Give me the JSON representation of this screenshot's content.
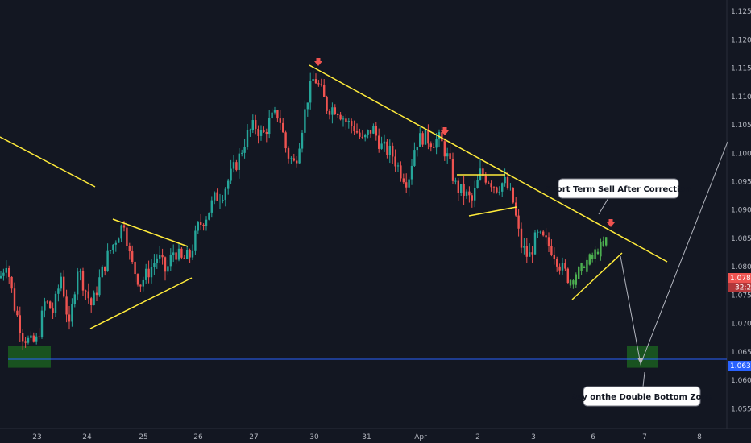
{
  "chart_data": {
    "type": "candlestick",
    "y_axis_ticks": [
      "1.12500",
      "1.12000",
      "1.11500",
      "1.11000",
      "1.10500",
      "1.10000",
      "1.09500",
      "1.09000",
      "1.08500",
      "1.08000",
      "1.07500",
      "1.07000",
      "1.06500",
      "1.06000",
      "1.05500"
    ],
    "y_axis_tick_values": [
      1.125,
      1.12,
      1.115,
      1.11,
      1.105,
      1.1,
      1.095,
      1.09,
      1.085,
      1.08,
      1.075,
      1.07,
      1.065,
      1.06,
      1.055
    ],
    "x_axis_ticks": [
      "23",
      "24",
      "25",
      "26",
      "27",
      "30",
      "31",
      "Apr",
      "2",
      "3",
      "6",
      "7",
      "8"
    ],
    "ylim": [
      1.0515,
      1.127
    ],
    "current_price": "1.07880",
    "countdown": "32:28",
    "support_level": "1.06371",
    "support_value": 1.06371,
    "support_color": "#2962ff",
    "up_color": "#26a69a",
    "down_color": "#ef5350",
    "projection_up_color": "#4caf50",
    "trendline_color": "#ffeb3b",
    "zone_color": "#1b5e20",
    "annotations": [
      {
        "text": "Short Term Sell After Correction"
      },
      {
        "text": "Buy onthe Double Bottom Zone"
      }
    ],
    "grid": false,
    "legend": "none"
  }
}
